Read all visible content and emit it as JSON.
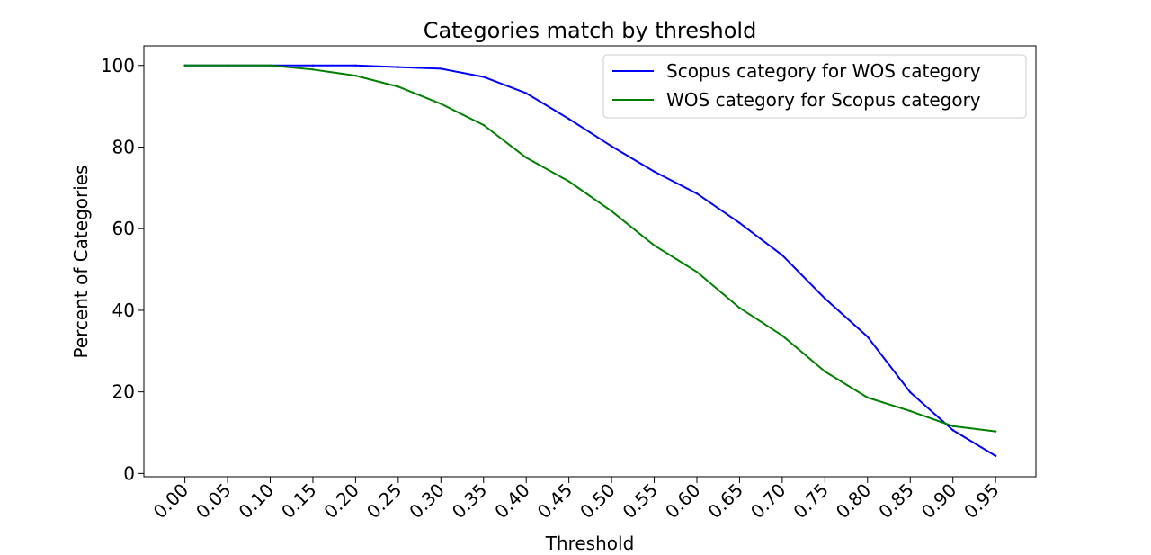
{
  "chart_data": {
    "type": "line",
    "title": "Categories match by threshold",
    "xlabel": "Threshold",
    "ylabel": "Percent of Categories",
    "x": [
      "0.00",
      "0.05",
      "0.10",
      "0.15",
      "0.20",
      "0.25",
      "0.30",
      "0.35",
      "0.40",
      "0.45",
      "0.50",
      "0.55",
      "0.60",
      "0.65",
      "0.70",
      "0.75",
      "0.80",
      "0.85",
      "0.90",
      "0.95"
    ],
    "yticks": [
      "0",
      "20",
      "40",
      "60",
      "80",
      "100"
    ],
    "ylim": [
      -0.8,
      104.8
    ],
    "legend_position": "top-right",
    "grid": false,
    "series": [
      {
        "name": "Scopus category for WOS category",
        "color": "#0000ff",
        "values": [
          100,
          100,
          100,
          100,
          100,
          99.6,
          99.2,
          97.2,
          93.2,
          86.9,
          80.2,
          74,
          68.6,
          61.4,
          53.5,
          42.9,
          33.5,
          19.9,
          10.6,
          4.3
        ]
      },
      {
        "name": "WOS category for Scopus category",
        "color": "#008000",
        "values": [
          100,
          100,
          100,
          99,
          97.5,
          94.8,
          90.6,
          85.4,
          77.4,
          71.6,
          64.3,
          55.9,
          49.4,
          40.6,
          33.8,
          25,
          18.6,
          15.3,
          11.6,
          10.3
        ]
      }
    ]
  }
}
